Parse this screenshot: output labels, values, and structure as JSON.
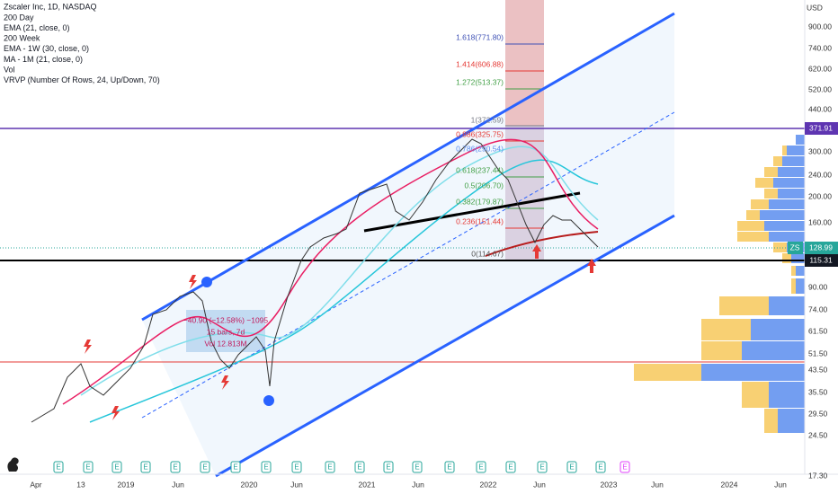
{
  "header": {
    "title": "Zscaler Inc, 1D, NASDAQ",
    "indicators": [
      "200 Day",
      "EMA (21, close, 0)",
      "200 Week",
      "EMA - 1W (30, close, 0)",
      "MA - 1M (21, close, 0)",
      "Vol",
      "VRVP (Number Of Rows, 24, Up/Down, 70)"
    ]
  },
  "price_axis": {
    "currency": "USD",
    "labels": [
      "900.00",
      "740.00",
      "620.00",
      "520.00",
      "440.00",
      "300.00",
      "240.00",
      "200.00",
      "160.00",
      "90.00",
      "74.00",
      "61.50",
      "51.50",
      "43.50",
      "35.50",
      "29.50",
      "24.50",
      "17.30"
    ]
  },
  "time_axis": {
    "labels": [
      "Apr",
      "13",
      "2019",
      "Jun",
      "2020",
      "Jun",
      "2021",
      "Jun",
      "2022",
      "Jun",
      "2023",
      "Jun",
      "2024",
      "Jun"
    ]
  },
  "price_tags": {
    "upper": "371.91",
    "symbol": "ZS",
    "last": "128.99",
    "support": "115.31"
  },
  "fibonacci": {
    "levels": [
      "1.618(771.80)",
      "1.414(606.88)",
      "1.272(513.37)",
      "1(372.59)",
      "0.886(325.75)",
      "0.786(290.54)",
      "0.618(237.44)",
      "0.5(206.70)",
      "0.382(179.87)",
      "0.236(151.44)",
      "0(114.67)"
    ]
  },
  "measure": {
    "change": "−40.90 (−12.58%) −1095",
    "bars": "15 bars, 7d",
    "volume": "Vol 12.813M"
  },
  "earnings_marker": "E"
}
